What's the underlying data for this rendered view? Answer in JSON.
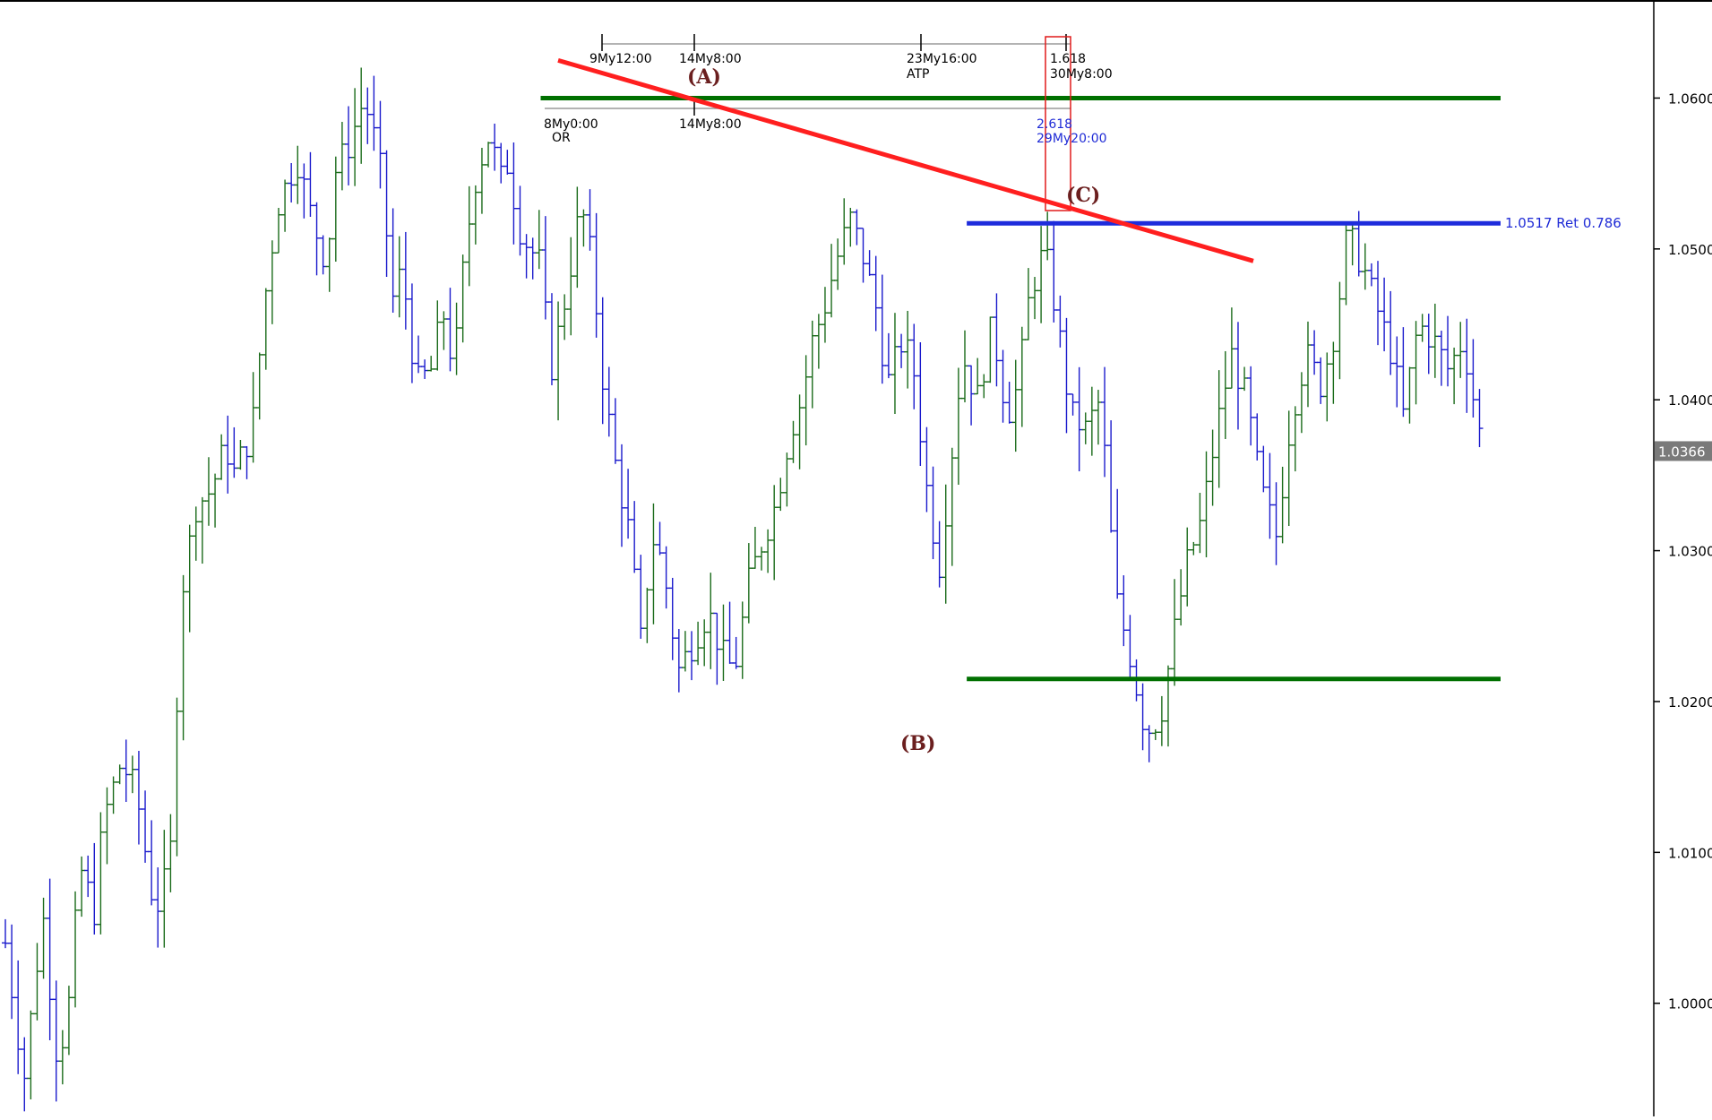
{
  "chart_data": {
    "type": "ohlc",
    "price_axis": {
      "ylim": [
        0.9925,
        1.0665
      ],
      "ticks": [
        1.0,
        1.01,
        1.02,
        1.03,
        1.04,
        1.05,
        1.06
      ],
      "tick_labels": [
        "1.0000",
        "1.0100",
        "1.0200",
        "1.0300",
        "1.0400",
        "1.0500",
        "1.0600"
      ]
    },
    "current_price": "1.0366",
    "colors": {
      "up_bar": "#1a6b1a",
      "down_bar": "#1a1acc",
      "resistance_line": "#007000",
      "retracement_line": "#1e2cdc",
      "trendline": "#ff1f1f",
      "box": "#e01a1a",
      "badge_bg": "#7a7a7a",
      "wave_label": "#6b1f1f"
    },
    "bar_count": 235,
    "path_points": [
      [
        0,
        1.004
      ],
      [
        10,
        0.995
      ],
      [
        20,
        1.006
      ],
      [
        28,
        0.996
      ],
      [
        34,
        1.0
      ],
      [
        40,
        1.009
      ],
      [
        48,
        1.006
      ],
      [
        52,
        1.012
      ],
      [
        62,
        1.016
      ],
      [
        70,
        1.014
      ],
      [
        80,
        1.006
      ],
      [
        88,
        1.009
      ],
      [
        94,
        1.027
      ],
      [
        102,
        1.033
      ],
      [
        110,
        1.034
      ],
      [
        118,
        1.037
      ],
      [
        122,
        1.035
      ],
      [
        132,
        1.038
      ],
      [
        140,
        1.048
      ],
      [
        146,
        1.053
      ],
      [
        156,
        1.056
      ],
      [
        164,
        1.052
      ],
      [
        172,
        1.049
      ],
      [
        176,
        1.055
      ],
      [
        184,
        1.057
      ],
      [
        192,
        1.06
      ],
      [
        200,
        1.056
      ],
      [
        208,
        1.046
      ],
      [
        212,
        1.049
      ],
      [
        220,
        1.041
      ],
      [
        228,
        1.042
      ],
      [
        234,
        1.046
      ],
      [
        240,
        1.042
      ],
      [
        246,
        1.05
      ],
      [
        252,
        1.055
      ],
      [
        260,
        1.058
      ],
      [
        264,
        1.054
      ],
      [
        268,
        1.056
      ],
      [
        276,
        1.051
      ],
      [
        286,
        1.049
      ],
      [
        292,
        1.042
      ],
      [
        300,
        1.047
      ],
      [
        308,
        1.053
      ],
      [
        314,
        1.049
      ],
      [
        320,
        1.041
      ],
      [
        326,
        1.036
      ],
      [
        334,
        1.031
      ],
      [
        340,
        1.024
      ],
      [
        346,
        1.031
      ],
      [
        352,
        1.029
      ],
      [
        360,
        1.022
      ],
      [
        368,
        1.024
      ],
      [
        376,
        1.026
      ],
      [
        384,
        1.023
      ],
      [
        390,
        1.022
      ],
      [
        398,
        1.028
      ],
      [
        406,
        1.031
      ],
      [
        412,
        1.033
      ],
      [
        420,
        1.038
      ],
      [
        426,
        1.04
      ],
      [
        432,
        1.044
      ],
      [
        438,
        1.046
      ],
      [
        444,
        1.049
      ],
      [
        452,
        1.052
      ],
      [
        458,
        1.05
      ],
      [
        466,
        1.046
      ],
      [
        472,
        1.041
      ],
      [
        480,
        1.044
      ],
      [
        486,
        1.042
      ],
      [
        494,
        1.033
      ],
      [
        500,
        1.029
      ],
      [
        506,
        1.036
      ],
      [
        512,
        1.043
      ],
      [
        520,
        1.04
      ],
      [
        528,
        1.045
      ],
      [
        536,
        1.039
      ],
      [
        542,
        1.041
      ],
      [
        548,
        1.047
      ],
      [
        556,
        1.05
      ],
      [
        562,
        1.046
      ],
      [
        570,
        1.039
      ],
      [
        578,
        1.038
      ],
      [
        586,
        1.04
      ],
      [
        594,
        1.027
      ],
      [
        602,
        1.023
      ],
      [
        610,
        1.018
      ],
      [
        618,
        1.019
      ],
      [
        626,
        1.025
      ],
      [
        632,
        1.029
      ],
      [
        640,
        1.032
      ],
      [
        648,
        1.038
      ],
      [
        656,
        1.043
      ],
      [
        664,
        1.04
      ],
      [
        672,
        1.034
      ],
      [
        680,
        1.031
      ],
      [
        688,
        1.039
      ],
      [
        696,
        1.043
      ],
      [
        704,
        1.041
      ],
      [
        712,
        1.045
      ],
      [
        718,
        1.051
      ],
      [
        726,
        1.049
      ],
      [
        734,
        1.046
      ],
      [
        742,
        1.043
      ],
      [
        748,
        1.039
      ],
      [
        756,
        1.045
      ],
      [
        764,
        1.044
      ],
      [
        772,
        1.042
      ],
      [
        780,
        1.044
      ],
      [
        790,
        1.037
      ]
    ],
    "horizontal_lines": [
      {
        "price": 1.06,
        "x0_bar": 201,
        "x1_bar": 560,
        "color": "resistance_line"
      },
      {
        "price": 1.0215,
        "x0_bar": 361,
        "x1_bar": 560,
        "color": "resistance_line"
      },
      {
        "price": 1.0517,
        "x0_bar": 361,
        "x1_bar": 560,
        "color": "retracement_line"
      }
    ],
    "retracement_label": "1.0517 Ret 0.786",
    "trendline": {
      "from": [
        186,
        1.0625
      ],
      "to": [
        470,
        1.0492
      ]
    },
    "wave_labels": [
      {
        "text": "(A)",
        "bar": 249,
        "price": 1.0615
      },
      {
        "text": "(B)",
        "bar": 349,
        "price": 1.0182
      },
      {
        "text": "(C)",
        "bar": 418,
        "price": 1.0532
      }
    ],
    "time_projections": {
      "top_row": [
        {
          "text": "9My12:00",
          "bar": 196
        },
        {
          "text": "14My8:00",
          "bar": 245
        },
        {
          "text": "23My16:00",
          "bar": 352
        },
        {
          "text": "1.618",
          "bar": 411
        },
        {
          "text": "30My8:00",
          "bar": 411
        },
        {
          "text": "ATP",
          "bar": 352
        }
      ],
      "second_row": [
        {
          "text": "8My0:00",
          "bar": 185
        },
        {
          "text": "OR",
          "bar": 187
        },
        {
          "text": "14My8:00",
          "bar": 245
        },
        {
          "text": "2.618",
          "bar": 406
        },
        {
          "text": "29My20:00",
          "bar": 406
        }
      ]
    }
  }
}
